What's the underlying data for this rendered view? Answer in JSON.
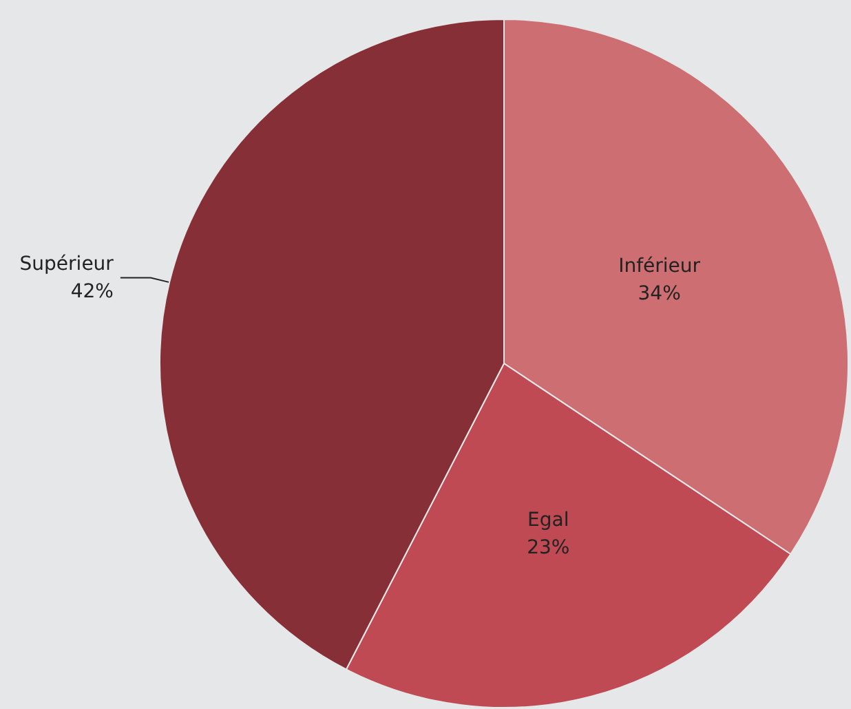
{
  "chart_data": {
    "type": "pie",
    "categories": [
      "Inférieur",
      "Egal",
      "Supérieur"
    ],
    "values": [
      34,
      23,
      42
    ],
    "colors": [
      "#cc6e72",
      "#bf4a53",
      "#862f37"
    ],
    "value_labels": [
      "34%",
      "23%",
      "42%"
    ]
  }
}
